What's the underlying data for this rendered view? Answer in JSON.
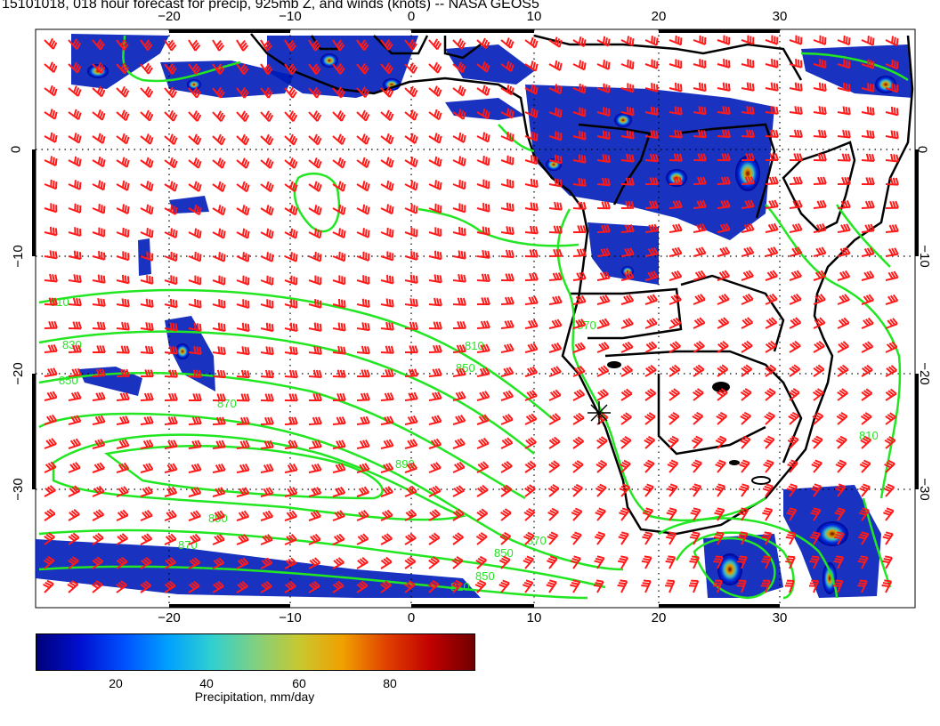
{
  "title": "15101018, 018 hour forecast for precip, 925mb Z, and winds (knots) -- NASA GEOS5",
  "lon_ticks": [
    "−20",
    "−10",
    "0",
    "10",
    "20",
    "30"
  ],
  "lat_ticks": [
    "0",
    "−10",
    "−20",
    "−30"
  ],
  "colorbar": {
    "ticks": [
      "20",
      "40",
      "60",
      "80"
    ],
    "label": "Precipitation, mm/day"
  },
  "contour_labels": [
    "810",
    "830",
    "850",
    "870",
    "890",
    "810",
    "850",
    "870",
    "890",
    "870",
    "850",
    "810",
    "870",
    "810",
    "850"
  ],
  "colors": {
    "contour": "#22e622",
    "barb": "#ff1a1a",
    "land": "#000000"
  }
}
